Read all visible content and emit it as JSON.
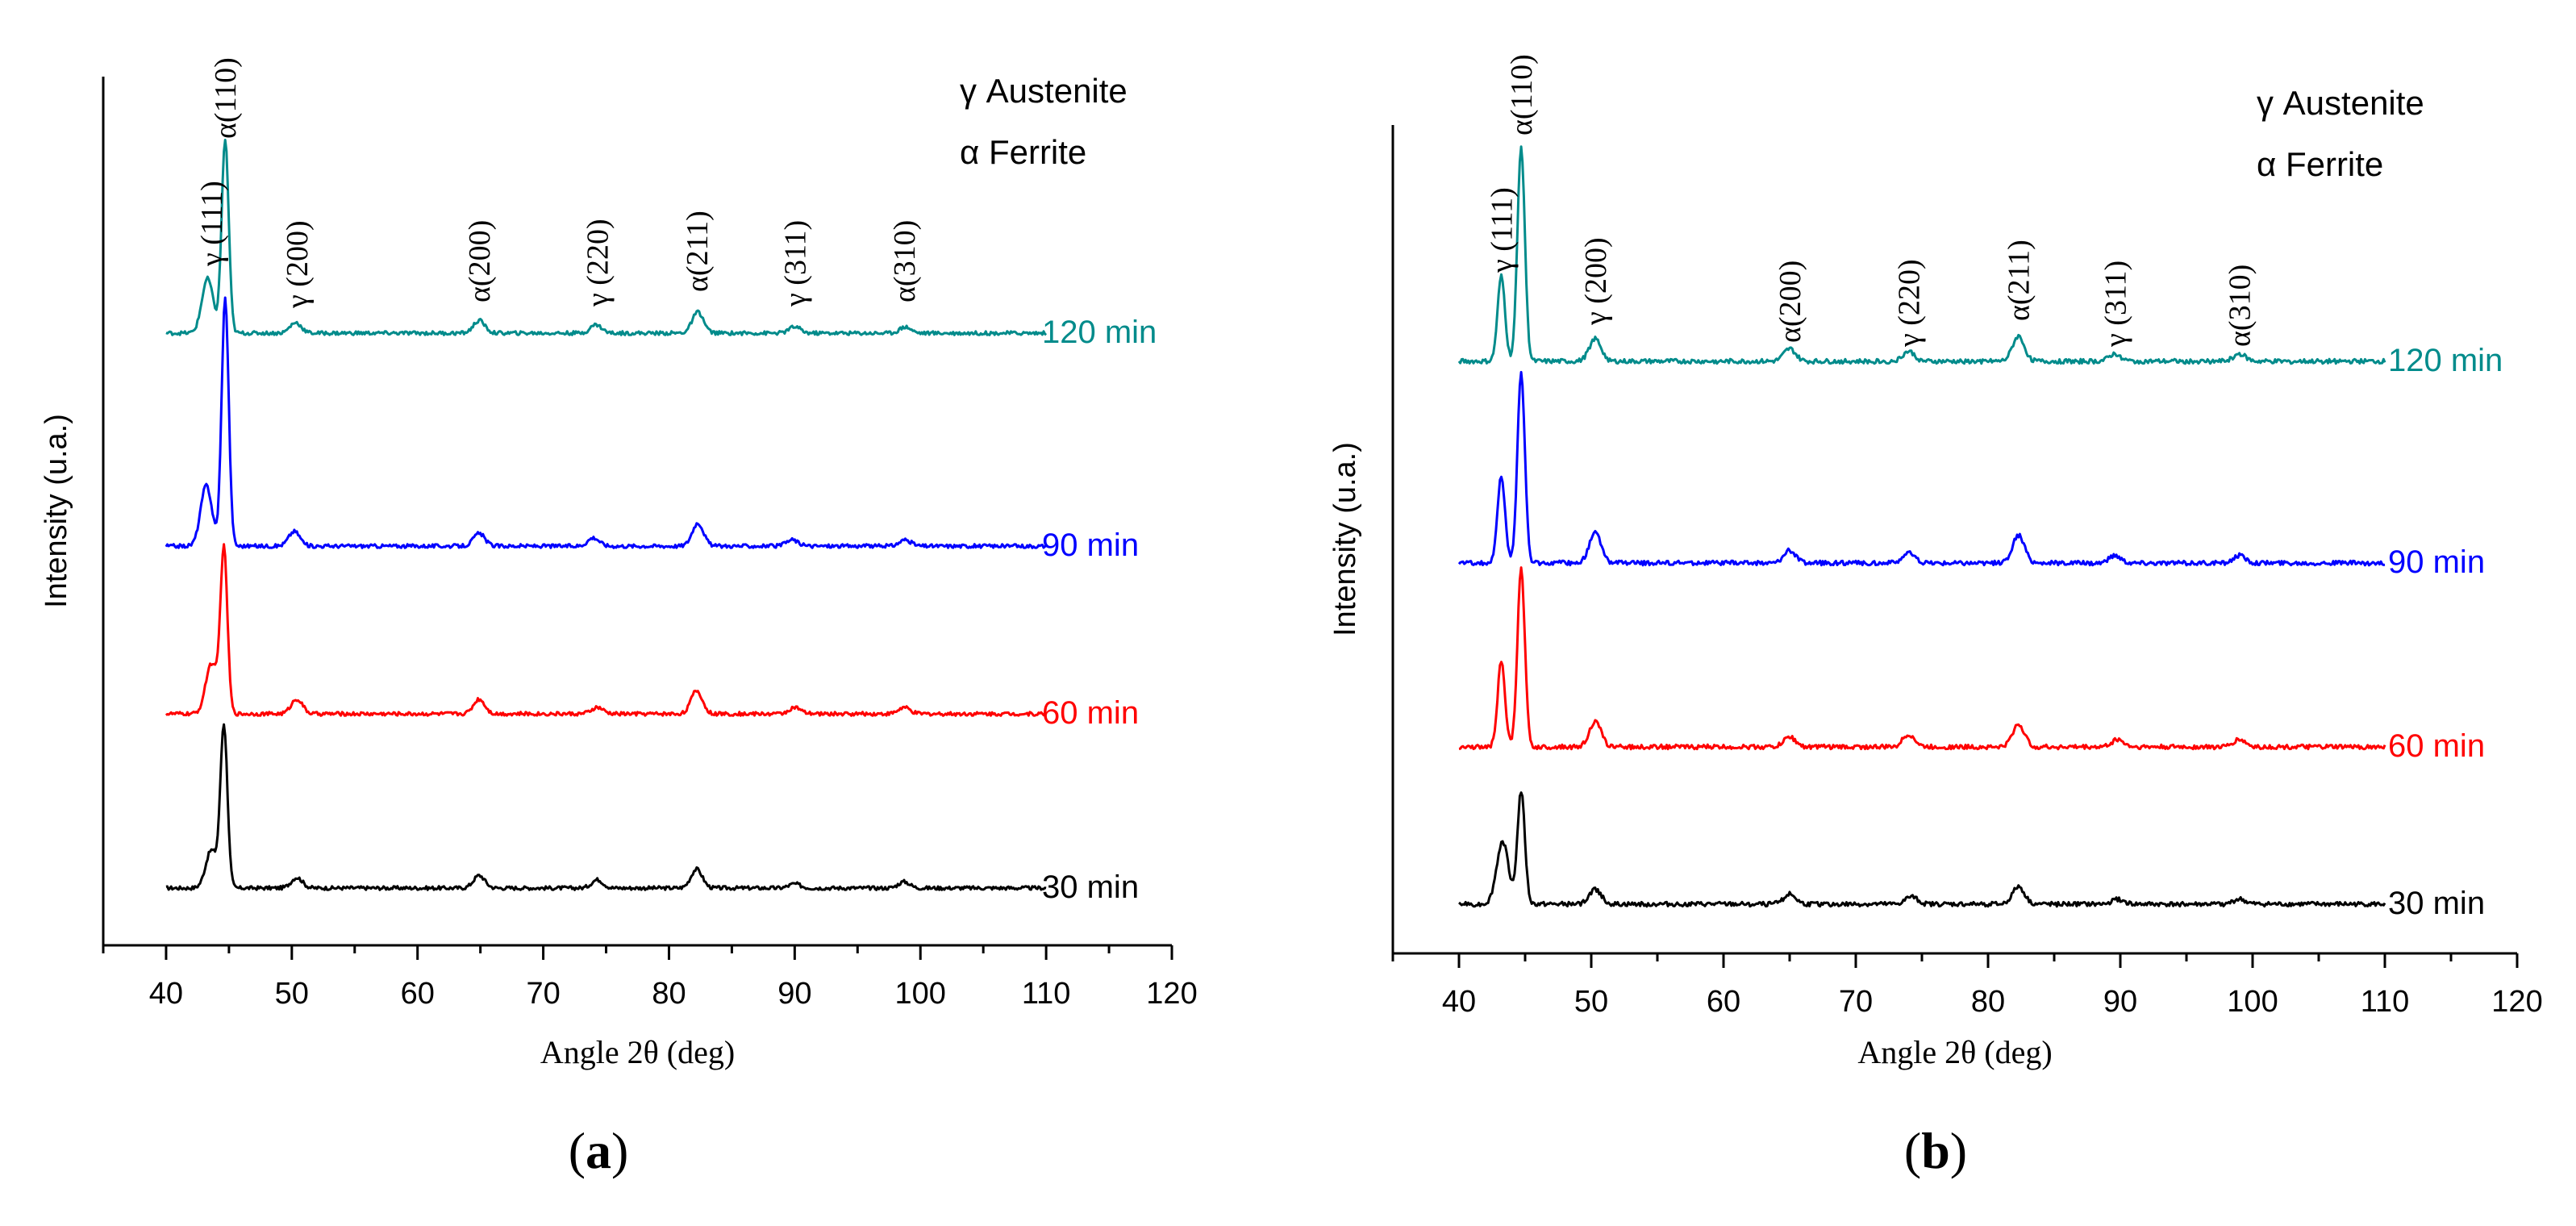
{
  "figure": {
    "panels": [
      {
        "id": "a",
        "caption_label": "a",
        "caption_open": "(",
        "caption_close": ")"
      },
      {
        "id": "b",
        "caption_label": "b",
        "caption_open": "(",
        "caption_close": ")"
      }
    ]
  },
  "chart_data": [
    {
      "type": "line",
      "panel": "a",
      "title": "",
      "xlabel": "Angle 2θ (deg)",
      "ylabel": "Intensity (u.a.)",
      "xlim": [
        35,
        120
      ],
      "xticks": [
        40,
        50,
        60,
        70,
        80,
        90,
        100,
        110,
        120
      ],
      "yticks": [],
      "grid": false,
      "legend": {
        "placement": "top-right",
        "entries": [
          "γ Austenite",
          "α Ferrite"
        ]
      },
      "peak_labels": [
        {
          "text": "γ (111)",
          "x": 43.6
        },
        {
          "text": "α(110)",
          "x": 44.7
        },
        {
          "text": "γ (200)",
          "x": 50.4
        },
        {
          "text": "α(200)",
          "x": 64.9
        },
        {
          "text": "γ (220)",
          "x": 74.3
        },
        {
          "text": "α(211)",
          "x": 82.2
        },
        {
          "text": "γ (311)",
          "x": 90.0
        },
        {
          "text": "α(310)",
          "x": 98.7
        }
      ],
      "series": [
        {
          "name": "30 min",
          "color": "#000000",
          "baseline": 0.0,
          "peaks": [
            {
              "x": 43.6,
              "h": 0.18
            },
            {
              "x": 44.6,
              "h": 0.77
            },
            {
              "x": 50.4,
              "h": 0.05
            },
            {
              "x": 64.9,
              "h": 0.06
            },
            {
              "x": 74.3,
              "h": 0.04
            },
            {
              "x": 82.2,
              "h": 0.09
            },
            {
              "x": 90.0,
              "h": 0.02
            },
            {
              "x": 98.7,
              "h": 0.03
            }
          ]
        },
        {
          "name": "60 min",
          "color": "#ff0000",
          "baseline": 1.0,
          "peaks": [
            {
              "x": 43.6,
              "h": 0.24
            },
            {
              "x": 44.6,
              "h": 0.78
            },
            {
              "x": 50.4,
              "h": 0.07
            },
            {
              "x": 64.9,
              "h": 0.07
            },
            {
              "x": 74.3,
              "h": 0.03
            },
            {
              "x": 82.2,
              "h": 0.11
            },
            {
              "x": 90.0,
              "h": 0.03
            },
            {
              "x": 98.7,
              "h": 0.03
            }
          ]
        },
        {
          "name": "90 min",
          "color": "#0000ff",
          "baseline": 2.0,
          "peaks": [
            {
              "x": 43.2,
              "h": 0.29
            },
            {
              "x": 44.7,
              "h": 1.18
            },
            {
              "x": 50.2,
              "h": 0.07
            },
            {
              "x": 64.9,
              "h": 0.06
            },
            {
              "x": 74.0,
              "h": 0.04
            },
            {
              "x": 82.3,
              "h": 0.11
            },
            {
              "x": 89.8,
              "h": 0.03
            },
            {
              "x": 98.8,
              "h": 0.03
            }
          ]
        },
        {
          "name": "120 min",
          "color": "#008b8b",
          "baseline": 3.0,
          "peaks": [
            {
              "x": 43.3,
              "h": 0.26
            },
            {
              "x": 44.7,
              "h": 0.92
            },
            {
              "x": 50.3,
              "h": 0.05
            },
            {
              "x": 64.9,
              "h": 0.06
            },
            {
              "x": 74.2,
              "h": 0.04
            },
            {
              "x": 82.3,
              "h": 0.1
            },
            {
              "x": 90.0,
              "h": 0.03
            },
            {
              "x": 98.8,
              "h": 0.03
            }
          ]
        }
      ]
    },
    {
      "type": "line",
      "panel": "b",
      "title": "",
      "xlabel": "Angle 2θ (deg)",
      "ylabel": "Intensity (u.a.)",
      "xlim": [
        35,
        120
      ],
      "xticks": [
        40,
        50,
        60,
        70,
        80,
        90,
        100,
        110,
        120
      ],
      "yticks": [],
      "grid": false,
      "legend": {
        "placement": "top-right",
        "entries": [
          "γ Austenite",
          "α Ferrite"
        ]
      },
      "peak_labels": [
        {
          "text": "γ (111)",
          "x": 43.2
        },
        {
          "text": "α(110)",
          "x": 44.7
        },
        {
          "text": "γ (200)",
          "x": 50.3
        },
        {
          "text": "α(200)",
          "x": 65.0
        },
        {
          "text": "γ (220)",
          "x": 74.0
        },
        {
          "text": "α(211)",
          "x": 82.3
        },
        {
          "text": "γ (311)",
          "x": 89.6
        },
        {
          "text": "α(310)",
          "x": 99.0
        }
      ],
      "series": [
        {
          "name": "30 min",
          "color": "#000000",
          "baseline": 0.0,
          "peaks": [
            {
              "x": 43.3,
              "h": 0.25
            },
            {
              "x": 44.7,
              "h": 0.45
            },
            {
              "x": 50.3,
              "h": 0.06
            },
            {
              "x": 65.0,
              "h": 0.04
            },
            {
              "x": 74.2,
              "h": 0.03
            },
            {
              "x": 82.3,
              "h": 0.07
            },
            {
              "x": 89.8,
              "h": 0.02
            },
            {
              "x": 99.0,
              "h": 0.02
            }
          ]
        },
        {
          "name": "60 min",
          "color": "#ff0000",
          "baseline": 0.88,
          "peaks": [
            {
              "x": 43.2,
              "h": 0.34
            },
            {
              "x": 44.7,
              "h": 0.71
            },
            {
              "x": 50.3,
              "h": 0.1
            },
            {
              "x": 65.0,
              "h": 0.04
            },
            {
              "x": 74.0,
              "h": 0.05
            },
            {
              "x": 82.3,
              "h": 0.09
            },
            {
              "x": 89.8,
              "h": 0.03
            },
            {
              "x": 99.0,
              "h": 0.03
            }
          ]
        },
        {
          "name": "90 min",
          "color": "#0000ff",
          "baseline": 1.9,
          "peaks": [
            {
              "x": 43.2,
              "h": 0.35
            },
            {
              "x": 44.7,
              "h": 0.76
            },
            {
              "x": 50.3,
              "h": 0.12
            },
            {
              "x": 65.0,
              "h": 0.05
            },
            {
              "x": 74.0,
              "h": 0.04
            },
            {
              "x": 82.3,
              "h": 0.11
            },
            {
              "x": 89.6,
              "h": 0.03
            },
            {
              "x": 99.0,
              "h": 0.03
            }
          ]
        },
        {
          "name": "120 min",
          "color": "#008b8b",
          "baseline": 2.9,
          "peaks": [
            {
              "x": 43.2,
              "h": 0.34
            },
            {
              "x": 44.7,
              "h": 0.86
            },
            {
              "x": 50.3,
              "h": 0.09
            },
            {
              "x": 65.0,
              "h": 0.05
            },
            {
              "x": 74.0,
              "h": 0.04
            },
            {
              "x": 82.3,
              "h": 0.1
            },
            {
              "x": 89.6,
              "h": 0.03
            },
            {
              "x": 99.0,
              "h": 0.03
            }
          ]
        }
      ]
    }
  ]
}
